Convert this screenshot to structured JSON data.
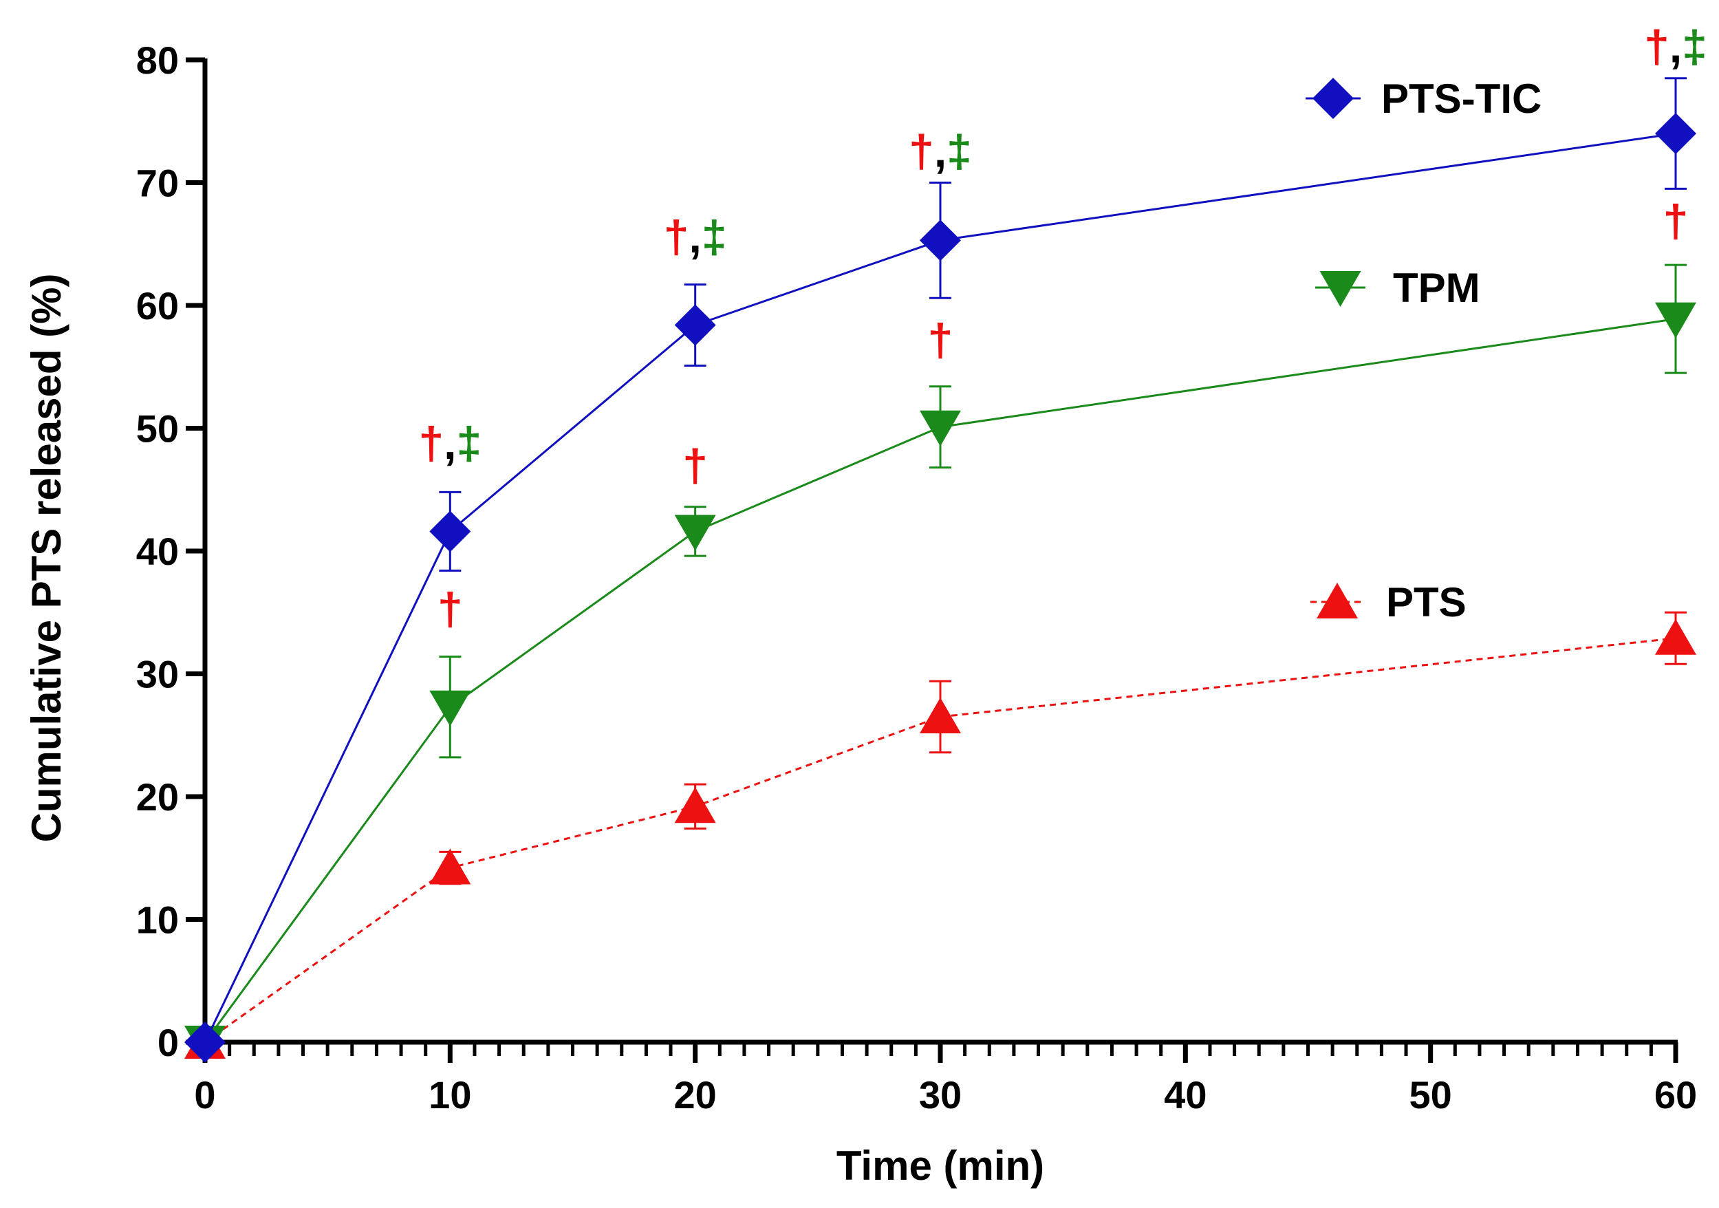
{
  "chart_data": {
    "type": "line",
    "title": "",
    "xlabel": "Time (min)",
    "ylabel": "Cumulative PTS released (%)",
    "xlim": [
      0,
      60
    ],
    "ylim": [
      0,
      80
    ],
    "xticks": [
      0,
      10,
      20,
      30,
      40,
      50,
      60
    ],
    "xtick_labels": [
      "0",
      "10",
      "20",
      "30",
      "40",
      "50",
      "60"
    ],
    "yticks": [
      0,
      10,
      20,
      30,
      40,
      50,
      60,
      70,
      80
    ],
    "ytick_labels": [
      "0",
      "10",
      "20",
      "30",
      "40",
      "50",
      "60",
      "70",
      "80"
    ],
    "grid": false,
    "legend_position": "right",
    "x": [
      0,
      10,
      20,
      30,
      60
    ],
    "series": [
      {
        "name": "PTS-TIC",
        "color": "#1010c0",
        "marker": "diamond",
        "line_style": "solid",
        "values": [
          0,
          41.6,
          58.4,
          65.3,
          74.0
        ],
        "errors": [
          0,
          3.2,
          3.3,
          4.7,
          4.5
        ]
      },
      {
        "name": "TPM",
        "color": "#1a8a1a",
        "marker": "triangle-down",
        "line_style": "solid",
        "values": [
          0,
          27.3,
          41.6,
          50.1,
          58.9
        ],
        "errors": [
          0,
          4.1,
          2.0,
          3.3,
          4.4
        ]
      },
      {
        "name": "PTS",
        "color": "#ee1111",
        "marker": "triangle-up",
        "line_style": "dashed",
        "values": [
          0,
          14.2,
          19.2,
          26.5,
          32.9
        ],
        "errors": [
          0,
          1.3,
          1.8,
          2.9,
          2.1
        ]
      }
    ],
    "annotations": [
      {
        "x": 10,
        "y": 47.5,
        "parts": [
          {
            "text": "†",
            "color": "#ee1111"
          },
          {
            "text": ",",
            "color": "#000000"
          },
          {
            "text": "‡",
            "color": "#1a8a1a"
          }
        ]
      },
      {
        "x": 10,
        "y": 34.0,
        "parts": [
          {
            "text": "†",
            "color": "#ee1111"
          }
        ]
      },
      {
        "x": 20,
        "y": 64.3,
        "parts": [
          {
            "text": "†",
            "color": "#ee1111"
          },
          {
            "text": ",",
            "color": "#000000"
          },
          {
            "text": "‡",
            "color": "#1a8a1a"
          }
        ]
      },
      {
        "x": 20,
        "y": 45.7,
        "parts": [
          {
            "text": "†",
            "color": "#ee1111"
          }
        ]
      },
      {
        "x": 30,
        "y": 71.3,
        "parts": [
          {
            "text": "†",
            "color": "#ee1111"
          },
          {
            "text": ",",
            "color": "#000000"
          },
          {
            "text": "‡",
            "color": "#1a8a1a"
          }
        ]
      },
      {
        "x": 30,
        "y": 55.9,
        "parts": [
          {
            "text": "†",
            "color": "#ee1111"
          }
        ]
      },
      {
        "x": 60,
        "y": 79.8,
        "parts": [
          {
            "text": "†",
            "color": "#ee1111"
          },
          {
            "text": ",",
            "color": "#000000"
          },
          {
            "text": "‡",
            "color": "#1a8a1a"
          }
        ]
      },
      {
        "x": 60,
        "y": 65.6,
        "parts": [
          {
            "text": "†",
            "color": "#ee1111"
          }
        ]
      }
    ]
  }
}
